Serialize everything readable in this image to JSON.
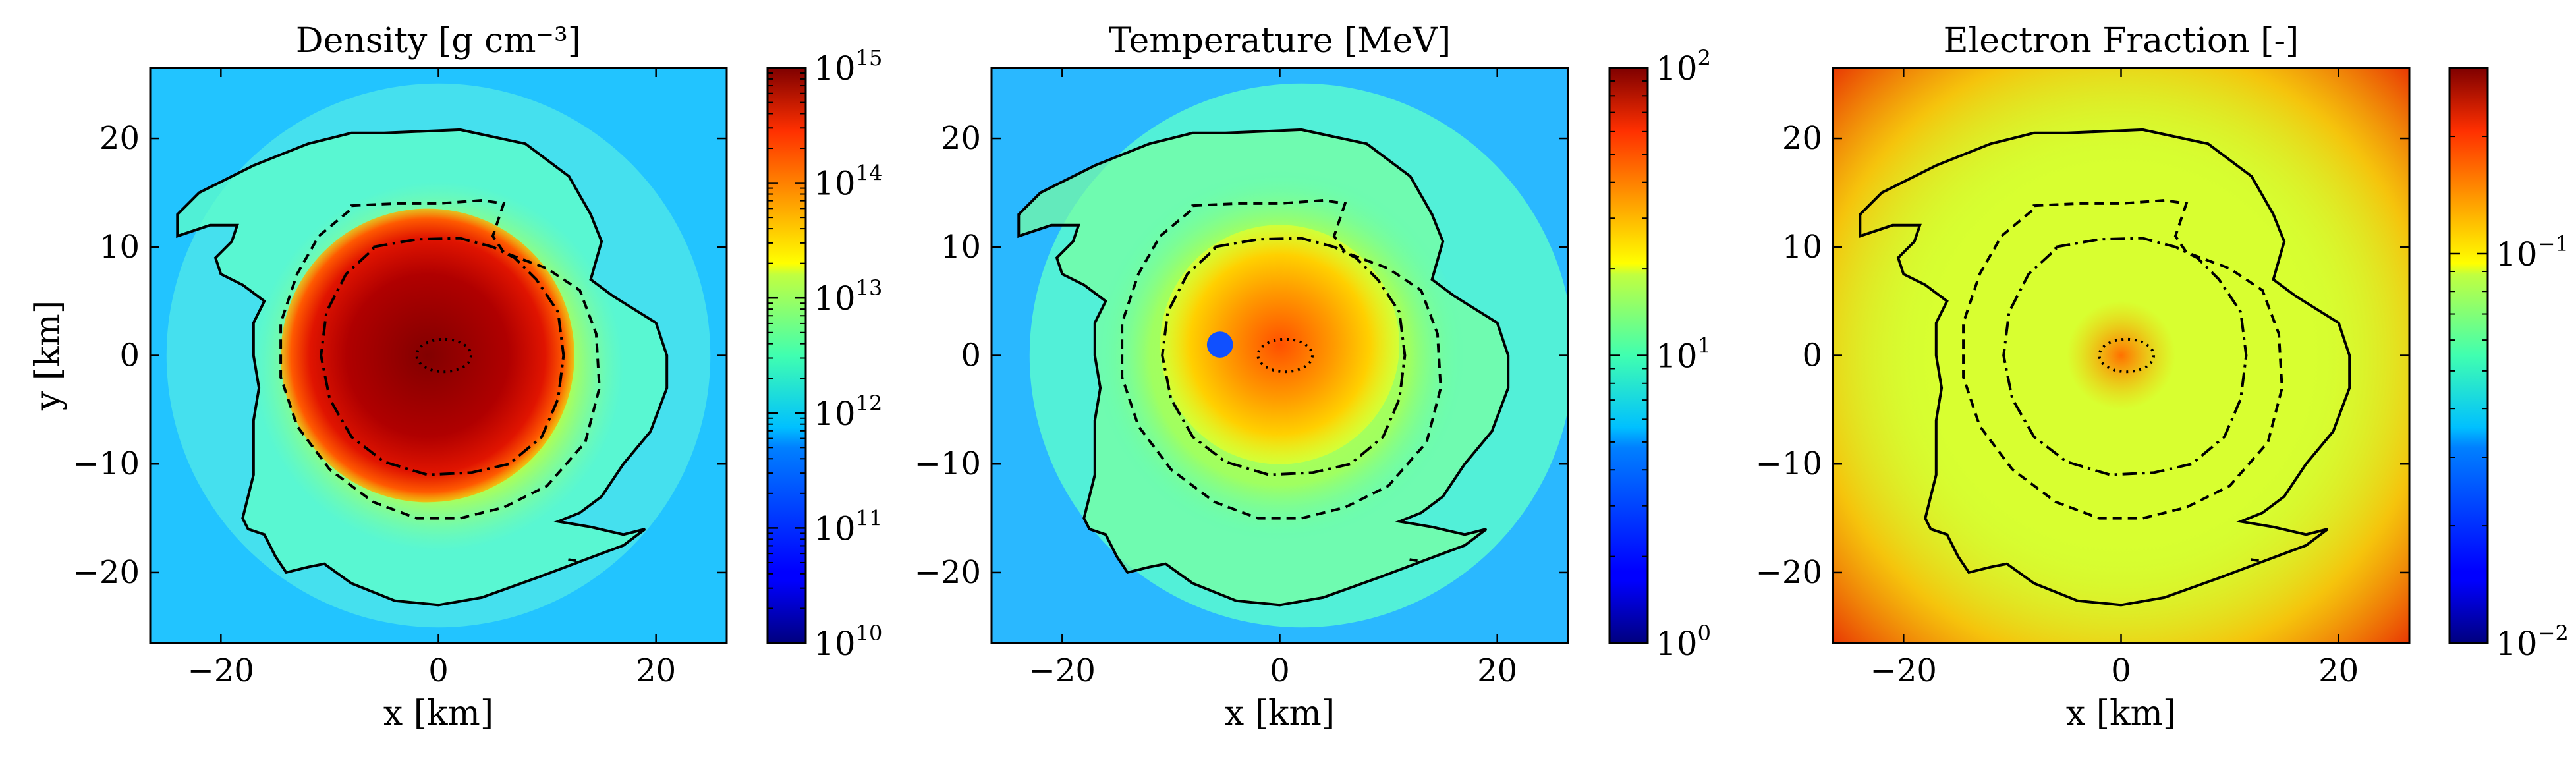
{
  "chart_data": [
    {
      "type": "heatmap",
      "title": "Density [g cm⁻³]",
      "xlabel": "x [km]",
      "ylabel": "y [km]",
      "xlim": [
        -26.5,
        26.5
      ],
      "ylim": [
        -26.5,
        26.5
      ],
      "x_ticks": [
        {
          "value": -20,
          "label": "−20"
        },
        {
          "value": 0,
          "label": "0"
        },
        {
          "value": 20,
          "label": "20"
        }
      ],
      "y_ticks": [
        {
          "value": 20,
          "label": "20"
        },
        {
          "value": 10,
          "label": "10"
        },
        {
          "value": 0,
          "label": "0"
        },
        {
          "value": -10,
          "label": "−10"
        },
        {
          "value": -20,
          "label": "−20"
        }
      ],
      "colorscale": "jet",
      "color_scale_type": "log",
      "color_range": [
        10000000000.0,
        1000000000000000.0
      ],
      "colorbar_ticks": [
        {
          "value": 10000000000.0,
          "base": "10",
          "exp": "10"
        },
        {
          "value": 100000000000.0,
          "base": "10",
          "exp": "11"
        },
        {
          "value": 1000000000000.0,
          "base": "10",
          "exp": "12"
        },
        {
          "value": 10000000000000.0,
          "base": "10",
          "exp": "13"
        },
        {
          "value": 100000000000000.0,
          "base": "10",
          "exp": "14"
        },
        {
          "value": 1000000000000000.0,
          "base": "10",
          "exp": "15"
        }
      ],
      "grid": false
    },
    {
      "type": "heatmap",
      "title": "Temperature [MeV]",
      "xlabel": "x [km]",
      "ylabel": "",
      "xlim": [
        -26.5,
        26.5
      ],
      "ylim": [
        -26.5,
        26.5
      ],
      "x_ticks": [
        {
          "value": -20,
          "label": "−20"
        },
        {
          "value": 0,
          "label": "0"
        },
        {
          "value": 20,
          "label": "20"
        }
      ],
      "y_ticks": [
        {
          "value": 20,
          "label": "20"
        },
        {
          "value": 10,
          "label": "10"
        },
        {
          "value": 0,
          "label": "0"
        },
        {
          "value": -10,
          "label": "−10"
        },
        {
          "value": -20,
          "label": "−20"
        }
      ],
      "colorscale": "jet",
      "color_scale_type": "log",
      "color_range": [
        1,
        100
      ],
      "colorbar_ticks": [
        {
          "value": 1,
          "base": "10",
          "exp": "0"
        },
        {
          "value": 10,
          "base": "10",
          "exp": "1"
        },
        {
          "value": 100,
          "base": "10",
          "exp": "2"
        }
      ],
      "grid": false
    },
    {
      "type": "heatmap",
      "title": "Electron Fraction [-]",
      "xlabel": "x [km]",
      "ylabel": "",
      "xlim": [
        -26.5,
        26.5
      ],
      "ylim": [
        -26.5,
        26.5
      ],
      "x_ticks": [
        {
          "value": -20,
          "label": "−20"
        },
        {
          "value": 0,
          "label": "0"
        },
        {
          "value": 20,
          "label": "20"
        }
      ],
      "y_ticks": [
        {
          "value": 20,
          "label": "20"
        },
        {
          "value": 10,
          "label": "10"
        },
        {
          "value": 0,
          "label": "0"
        },
        {
          "value": -10,
          "label": "−10"
        },
        {
          "value": -20,
          "label": "−20"
        }
      ],
      "colorscale": "jet",
      "color_scale_type": "log",
      "color_range": [
        0.01,
        0.3
      ],
      "colorbar_ticks": [
        {
          "value": 0.01,
          "base": "10",
          "exp": "−2"
        },
        {
          "value": 0.1,
          "base": "10",
          "exp": "−1"
        }
      ],
      "grid": false
    }
  ]
}
